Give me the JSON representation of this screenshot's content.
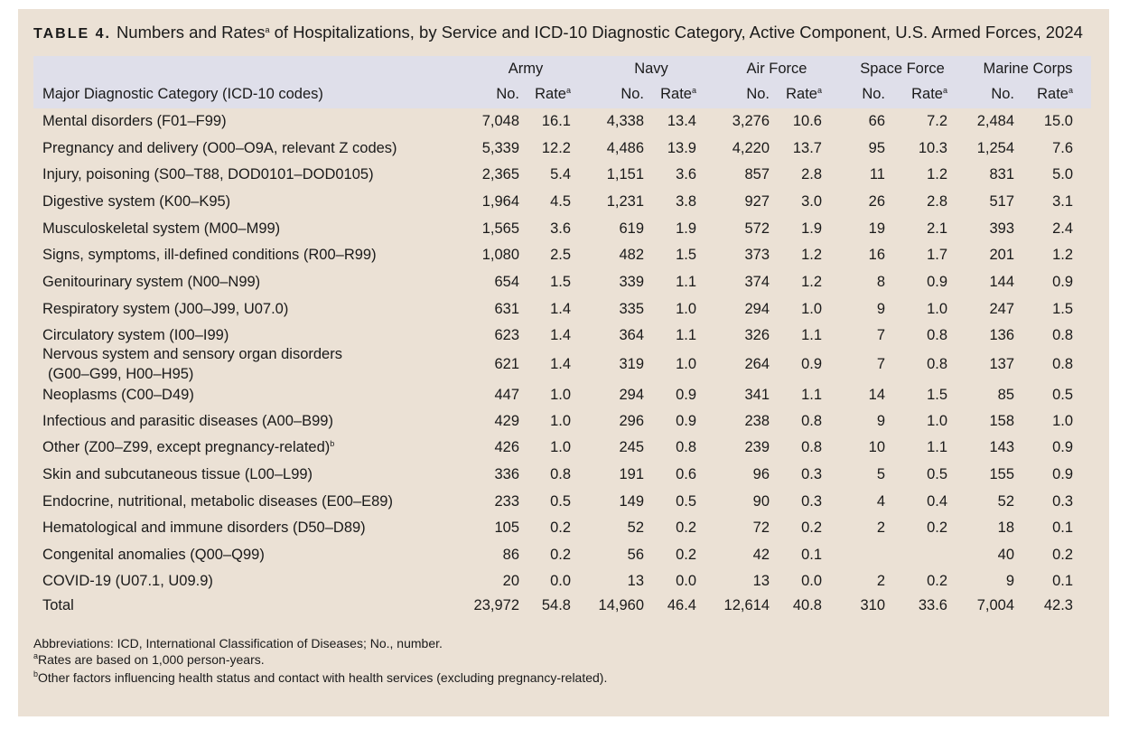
{
  "title": {
    "label": "TABLE 4.",
    "text": "Numbers and Rates",
    "sup": "a",
    "rest": "of Hospitalizations, by Service and ICD-10 Diagnostic Category, Active Component, U.S. Armed Forces, 2024"
  },
  "table": {
    "groups": [
      "Army",
      "Navy",
      "Air Force",
      "Space Force",
      "Marine Corps"
    ],
    "first_header": "Major Diagnostic Category (ICD-10 codes)",
    "columns": [
      {
        "label": "No."
      },
      {
        "label": "Rate",
        "sup": "a"
      },
      {
        "label": "No."
      },
      {
        "label": "Rate",
        "sup": "a"
      },
      {
        "label": "No."
      },
      {
        "label": "Rate",
        "sup": "a"
      },
      {
        "label": "No."
      },
      {
        "label": "Rate",
        "sup": "a"
      },
      {
        "label": "No."
      },
      {
        "label": "Rate",
        "sup": "a"
      }
    ],
    "rows": [
      {
        "label": "Mental disorders (F01–F99)",
        "cells": [
          "7,048",
          "16.1",
          "4,338",
          "13.4",
          "3,276",
          "10.6",
          "66",
          "7.2",
          "2,484",
          "15.0"
        ]
      },
      {
        "label": "Pregnancy and delivery (O00–O9A, relevant Z codes)",
        "cells": [
          "5,339",
          "12.2",
          "4,486",
          "13.9",
          "4,220",
          "13.7",
          "95",
          "10.3",
          "1,254",
          "7.6"
        ]
      },
      {
        "label": "Injury, poisoning (S00–T88, DOD0101–DOD0105)",
        "cells": [
          "2,365",
          "5.4",
          "1,151",
          "3.6",
          "857",
          "2.8",
          "11",
          "1.2",
          "831",
          "5.0"
        ]
      },
      {
        "label": "Digestive system (K00–K95)",
        "cells": [
          "1,964",
          "4.5",
          "1,231",
          "3.8",
          "927",
          "3.0",
          "26",
          "2.8",
          "517",
          "3.1"
        ]
      },
      {
        "label": "Musculoskeletal system (M00–M99)",
        "cells": [
          "1,565",
          "3.6",
          "619",
          "1.9",
          "572",
          "1.9",
          "19",
          "2.1",
          "393",
          "2.4"
        ]
      },
      {
        "label": "Signs, symptoms, ill-defined conditions (R00–R99)",
        "cells": [
          "1,080",
          "2.5",
          "482",
          "1.5",
          "373",
          "1.2",
          "16",
          "1.7",
          "201",
          "1.2"
        ]
      },
      {
        "label": "Genitourinary system (N00–N99)",
        "cells": [
          "654",
          "1.5",
          "339",
          "1.1",
          "374",
          "1.2",
          "8",
          "0.9",
          "144",
          "0.9"
        ]
      },
      {
        "label": "Respiratory system (J00–J99, U07.0)",
        "cells": [
          "631",
          "1.4",
          "335",
          "1.0",
          "294",
          "1.0",
          "9",
          "1.0",
          "247",
          "1.5"
        ]
      },
      {
        "label": "Circulatory system (I00–I99)",
        "cells": [
          "623",
          "1.4",
          "364",
          "1.1",
          "326",
          "1.1",
          "7",
          "0.8",
          "136",
          "0.8"
        ]
      },
      {
        "label": [
          "Nervous system and sensory organ disorders",
          "(G00–G99, H00–H95)"
        ],
        "cells": [
          "621",
          "1.4",
          "319",
          "1.0",
          "264",
          "0.9",
          "7",
          "0.8",
          "137",
          "0.8"
        ]
      },
      {
        "label": "Neoplasms (C00–D49)",
        "cells": [
          "447",
          "1.0",
          "294",
          "0.9",
          "341",
          "1.1",
          "14",
          "1.5",
          "85",
          "0.5"
        ]
      },
      {
        "label": "Infectious and parasitic diseases (A00–B99)",
        "cells": [
          "429",
          "1.0",
          "296",
          "0.9",
          "238",
          "0.8",
          "9",
          "1.0",
          "158",
          "1.0"
        ]
      },
      {
        "label": "Other (Z00–Z99, except pregnancy-related)",
        "sup": "b",
        "cells": [
          "426",
          "1.0",
          "245",
          "0.8",
          "239",
          "0.8",
          "10",
          "1.1",
          "143",
          "0.9"
        ]
      },
      {
        "label": "Skin and subcutaneous tissue (L00–L99)",
        "cells": [
          "336",
          "0.8",
          "191",
          "0.6",
          "96",
          "0.3",
          "5",
          "0.5",
          "155",
          "0.9"
        ]
      },
      {
        "label": "Endocrine, nutritional, metabolic diseases (E00–E89)",
        "cells": [
          "233",
          "0.5",
          "149",
          "0.5",
          "90",
          "0.3",
          "4",
          "0.4",
          "52",
          "0.3"
        ]
      },
      {
        "label": "Hematological and immune disorders (D50–D89)",
        "cells": [
          "105",
          "0.2",
          "52",
          "0.2",
          "72",
          "0.2",
          "2",
          "0.2",
          "18",
          "0.1"
        ]
      },
      {
        "label": "Congenital anomalies (Q00–Q99)",
        "cells": [
          "86",
          "0.2",
          "56",
          "0.2",
          "42",
          "0.1",
          null,
          null,
          "40",
          "0.2"
        ]
      },
      {
        "label": "COVID-19 (U07.1, U09.9)",
        "cells": [
          "20",
          "0.0",
          "13",
          "0.0",
          "13",
          "0.0",
          "2",
          "0.2",
          "9",
          "0.1"
        ]
      },
      {
        "label": "Total",
        "cells": [
          "23,972",
          "54.8",
          "14,960",
          "46.4",
          "12,614",
          "40.8",
          "310",
          "33.6",
          "7,004",
          "42.3"
        ]
      }
    ]
  },
  "footnotes": [
    {
      "text": "Abbreviations: ICD, International Classification of Diseases; No., number."
    },
    {
      "sup": "a",
      "text": "Rates are based on 1,000 person-years."
    },
    {
      "sup": "b",
      "text": "Other factors influencing health status and contact with health services (excluding pregnancy-related)."
    }
  ]
}
